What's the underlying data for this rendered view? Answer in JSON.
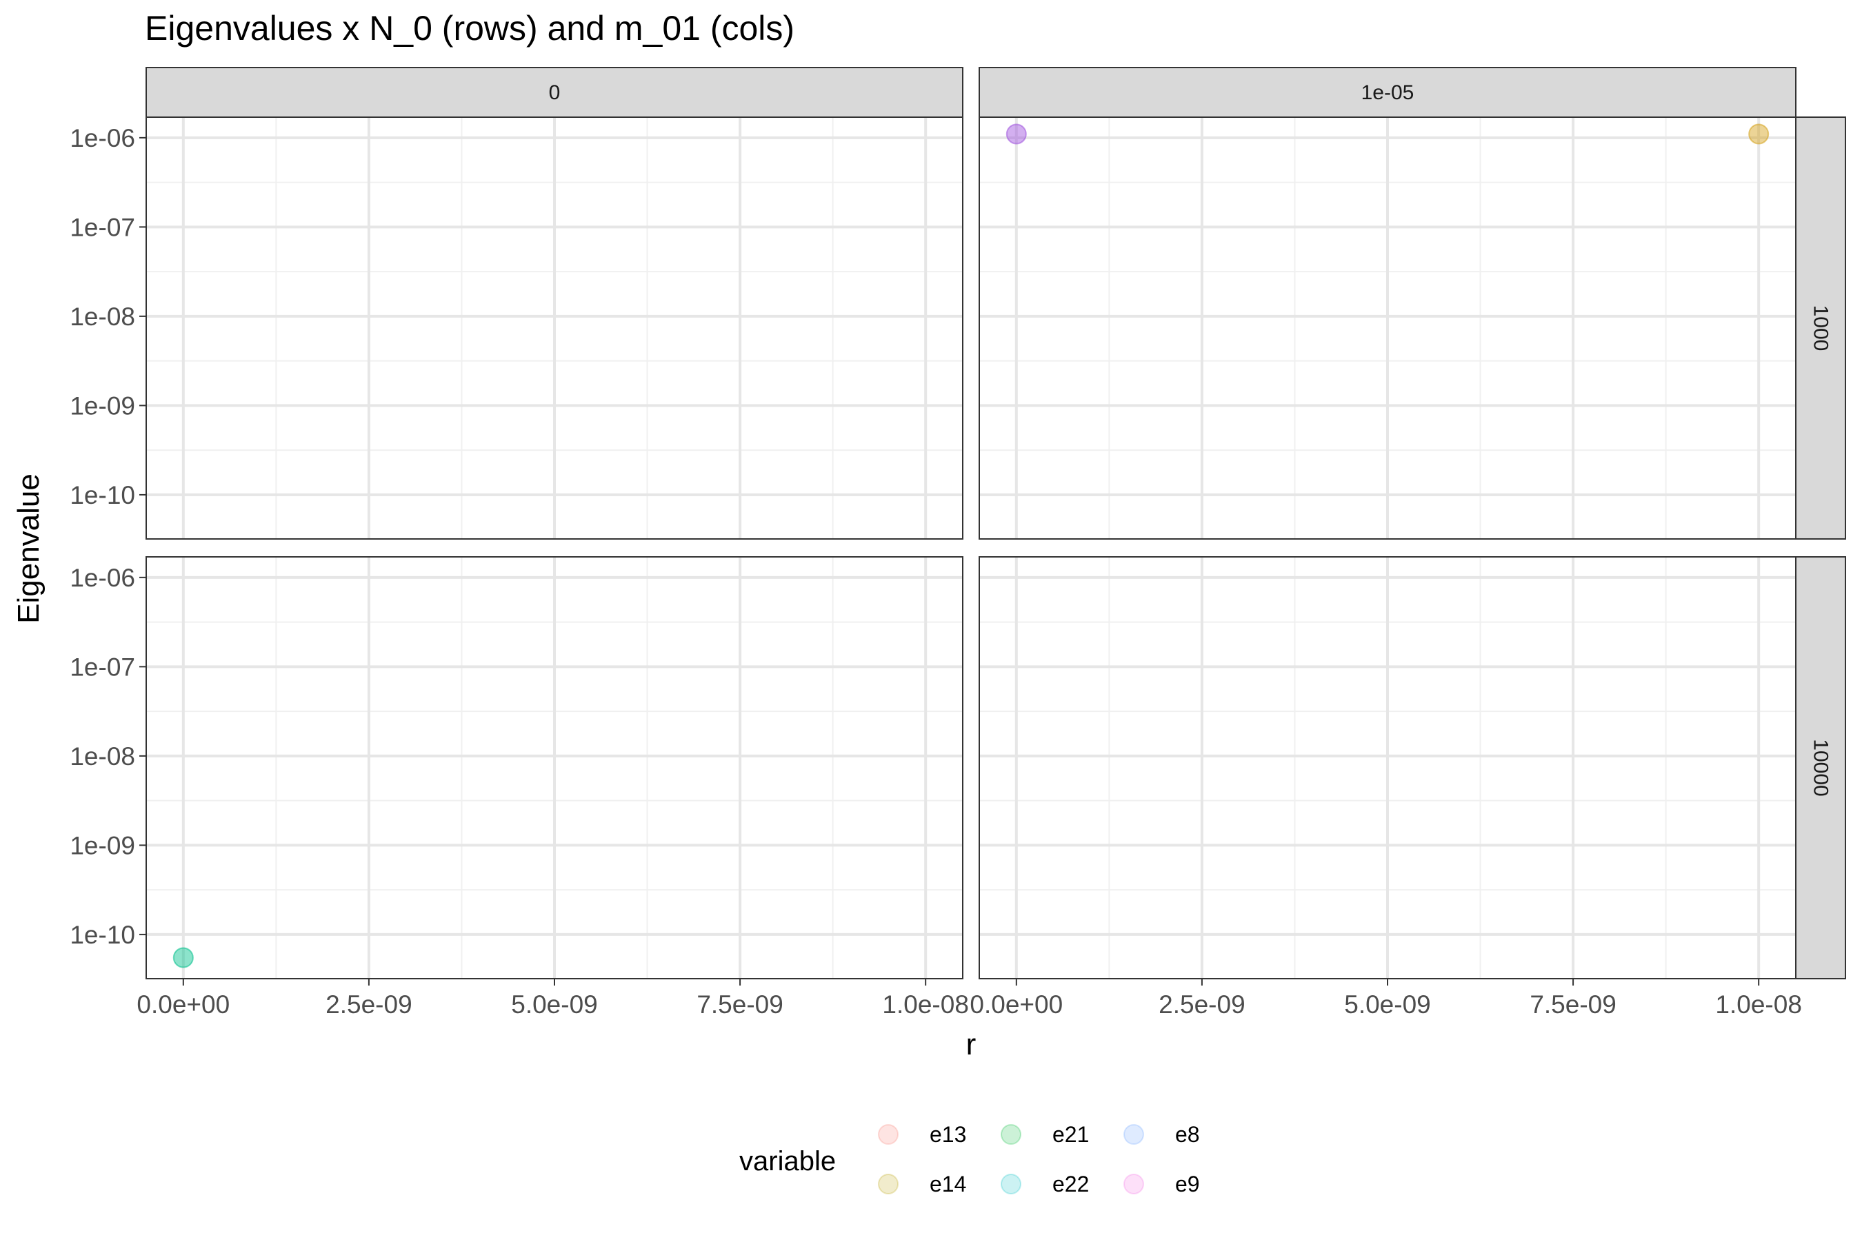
{
  "chart_data": {
    "type": "scatter",
    "title": "Eigenvalues x N_0 (rows) and m_01 (cols)",
    "xlabel": "r",
    "ylabel": "Eigenvalue",
    "y_scale": "log10",
    "grid": true,
    "legend_position": "bottom",
    "col_facets": [
      "0",
      "1e-05"
    ],
    "row_facets": [
      "1000",
      "10000"
    ],
    "xlim": [
      -5e-10,
      1.05e-08
    ],
    "ylim": [
      3.2e-11,
      1.7e-06
    ],
    "x_ticks": [
      {
        "value": 0,
        "label": "0.0e+00"
      },
      {
        "value": 2.5e-09,
        "label": "2.5e-09"
      },
      {
        "value": 5e-09,
        "label": "5.0e-09"
      },
      {
        "value": 7.5e-09,
        "label": "7.5e-09"
      },
      {
        "value": 1e-08,
        "label": "1.0e-08"
      }
    ],
    "y_ticks": [
      {
        "value": 1e-06,
        "label": "1e-06"
      },
      {
        "value": 1e-07,
        "label": "1e-07"
      },
      {
        "value": 1e-08,
        "label": "1e-08"
      },
      {
        "value": 1e-09,
        "label": "1e-09"
      },
      {
        "value": 1e-10,
        "label": "1e-10"
      }
    ],
    "legend": {
      "title": "variable",
      "entries": [
        {
          "name": "e13",
          "color": "#F8766D"
        },
        {
          "name": "e14",
          "color": "#B79F00"
        },
        {
          "name": "e21",
          "color": "#00BA38"
        },
        {
          "name": "e22",
          "color": "#00BFC4"
        },
        {
          "name": "e8",
          "color": "#619CFF"
        },
        {
          "name": "e9",
          "color": "#F564E3"
        }
      ]
    },
    "points": [
      {
        "row": "1000",
        "col": "1e-05",
        "x": 0,
        "y": 1.1e-06,
        "color": "#9D4EDD"
      },
      {
        "row": "1000",
        "col": "1e-05",
        "x": 1e-08,
        "y": 1.1e-06,
        "color": "#D4A017"
      },
      {
        "row": "10000",
        "col": "0",
        "x": 0,
        "y": 5.5e-11,
        "color": "#00C08B"
      }
    ]
  }
}
